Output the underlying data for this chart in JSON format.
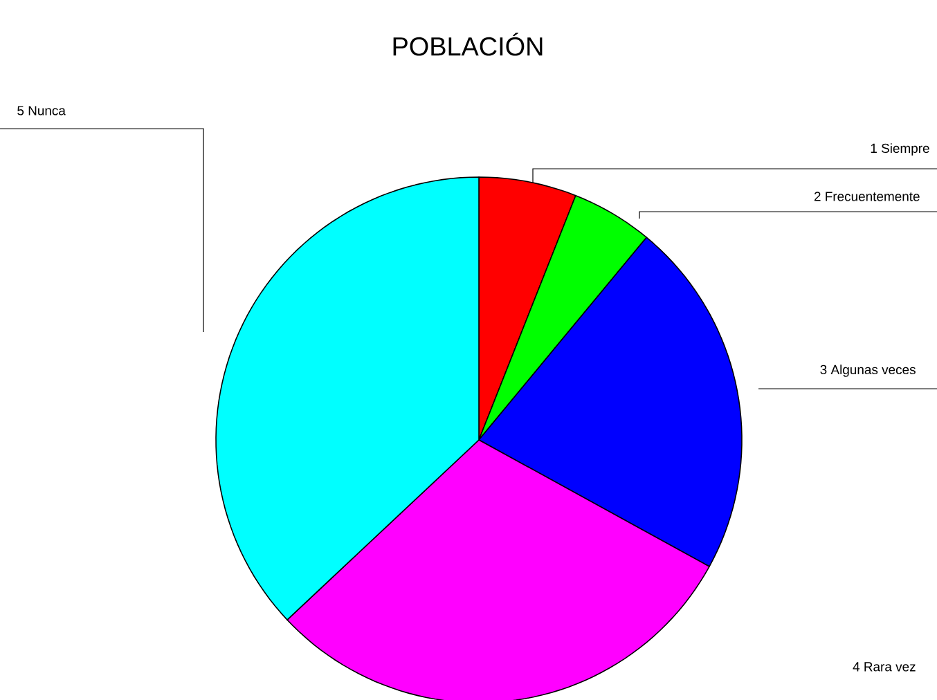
{
  "chart_data": {
    "type": "pie",
    "title": "POBLACIÓN",
    "categories": [
      "1 Siempre",
      "2 Frecuentemente",
      "3 Algunas veces",
      "4 Rara vez",
      "5 Nunca"
    ],
    "values": [
      6,
      5,
      22,
      30,
      37
    ],
    "colors": [
      "#ff0000",
      "#00ff00",
      "#0000ff",
      "#ff00ff",
      "#00ffff"
    ]
  }
}
